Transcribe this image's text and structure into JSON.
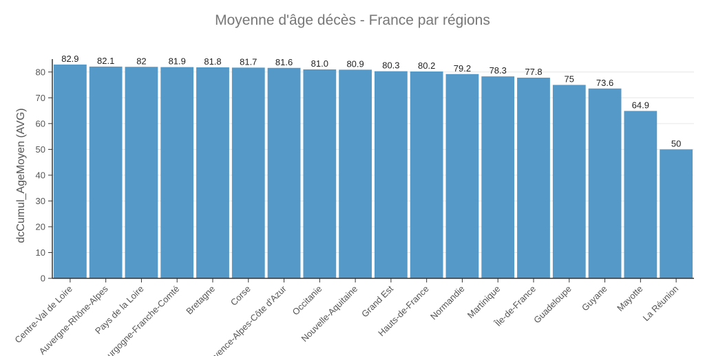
{
  "chart_data": {
    "type": "bar",
    "title": "Moyenne d'âge  décès - France par régions",
    "xlabel": "",
    "ylabel": "dcCumul_AgeMoyen (AVG)",
    "ylim": [
      0,
      85
    ],
    "yticks": [
      0,
      10,
      20,
      30,
      40,
      50,
      60,
      70,
      80
    ],
    "grid": true,
    "bar_color": "#5499c7",
    "categories": [
      "Centre-Val de Loire",
      "Auvergne-Rhône-Alpes",
      "Pays de la Loire",
      "Bourgogne-Franche-Comté",
      "Bretagne",
      "Corse",
      "Provence-Alpes-Côte d'Azur",
      "Occitanie",
      "Nouvelle-Aquitaine",
      "Grand Est",
      "Hauts-de-France",
      "Normandie",
      "Martinique",
      "Île-de-France",
      "Guadeloupe",
      "Guyane",
      "Mayotte",
      "La Réunion"
    ],
    "values": [
      82.9,
      82.1,
      82,
      81.9,
      81.8,
      81.7,
      81.6,
      81.0,
      80.9,
      80.3,
      80.2,
      79.2,
      78.3,
      77.8,
      75,
      73.6,
      64.9,
      50
    ],
    "value_labels": [
      "82.9",
      "82.1",
      "82",
      "81.9",
      "81.8",
      "81.7",
      "81.6",
      "81.0",
      "80.9",
      "80.3",
      "80.2",
      "79.2",
      "78.3",
      "77.8",
      "75",
      "73.6",
      "64.9",
      "50"
    ]
  }
}
